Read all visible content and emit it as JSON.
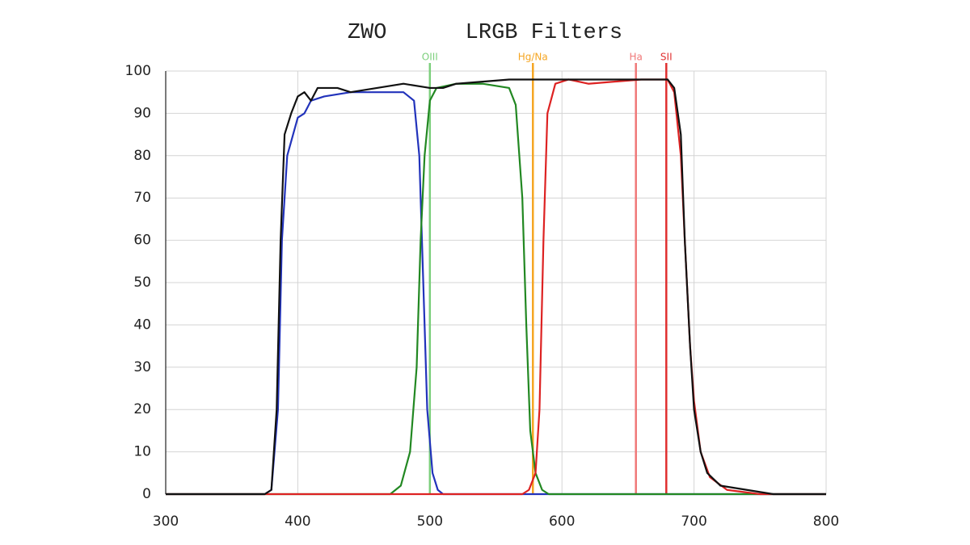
{
  "chart_data": {
    "type": "line",
    "title": "ZWO      LRGB Filters",
    "xlim": [
      300,
      800
    ],
    "xticks": [
      300,
      400,
      500,
      600,
      700,
      800
    ],
    "ylim": [
      0,
      100
    ],
    "yticks": [
      0,
      10,
      20,
      30,
      40,
      50,
      60,
      70,
      80,
      90,
      100
    ],
    "grid": true,
    "reference_lines": [
      {
        "label": "OIII",
        "x": 500,
        "color": "#7ccf7c"
      },
      {
        "label": "Hg/Na",
        "x": 578,
        "color": "#f5a623"
      },
      {
        "label": "Ha",
        "x": 656,
        "color": "#f07878"
      },
      {
        "label": "SII",
        "x": 679,
        "color": "#e03030"
      }
    ],
    "series": [
      {
        "color": "#2233bb",
        "x": [
          300,
          375,
          380,
          385,
          388,
          392,
          400,
          405,
          410,
          420,
          440,
          460,
          480,
          488,
          492,
          495,
          498,
          502,
          506,
          510,
          800
        ],
        "values": [
          0,
          0,
          1,
          20,
          60,
          80,
          89,
          90,
          93,
          94,
          95,
          95,
          95,
          93,
          80,
          50,
          20,
          5,
          1,
          0,
          0
        ]
      },
      {
        "color": "#228822",
        "x": [
          300,
          470,
          478,
          485,
          490,
          493,
          496,
          500,
          505,
          520,
          540,
          560,
          565,
          570,
          573,
          576,
          580,
          585,
          590,
          800
        ],
        "values": [
          0,
          0,
          2,
          10,
          30,
          60,
          80,
          93,
          96,
          97,
          97,
          96,
          92,
          70,
          40,
          15,
          5,
          1,
          0,
          0
        ]
      },
      {
        "color": "#dd2222",
        "x": [
          300,
          570,
          575,
          580,
          583,
          586,
          589,
          595,
          605,
          620,
          660,
          680,
          685,
          690,
          693,
          697,
          700,
          705,
          712,
          725,
          750,
          800
        ],
        "values": [
          0,
          0,
          1,
          5,
          20,
          60,
          90,
          97,
          98,
          97,
          98,
          98,
          95,
          80,
          60,
          35,
          22,
          10,
          4,
          1,
          0,
          0
        ]
      },
      {
        "color": "#111111",
        "x": [
          300,
          375,
          380,
          384,
          387,
          390,
          395,
          400,
          405,
          410,
          415,
          430,
          440,
          460,
          480,
          500,
          510,
          520,
          560,
          600,
          650,
          680,
          685,
          690,
          693,
          697,
          700,
          705,
          710,
          720,
          740,
          760,
          800
        ],
        "values": [
          0,
          0,
          1,
          20,
          60,
          85,
          90,
          94,
          95,
          93,
          96,
          96,
          95,
          96,
          97,
          96,
          96,
          97,
          98,
          98,
          98,
          98,
          96,
          85,
          60,
          35,
          20,
          10,
          5,
          2,
          1,
          0,
          0
        ]
      }
    ]
  }
}
